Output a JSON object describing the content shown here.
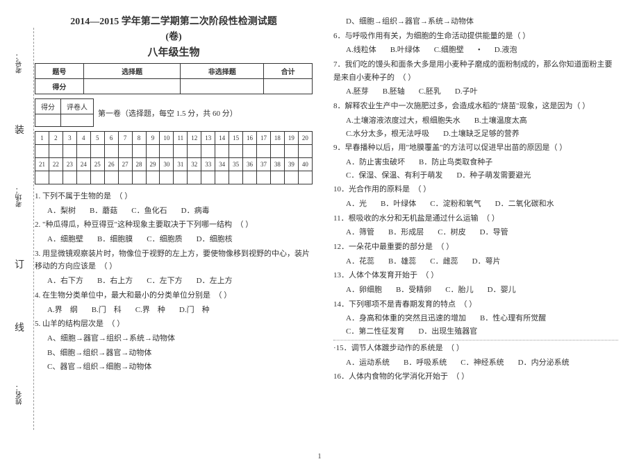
{
  "side": {
    "kaohao": "考号：",
    "kaochang": "考场：",
    "xingming": "姓名：",
    "zhuang": "装",
    "ding": "订",
    "xian": "线"
  },
  "header": {
    "title": "2014—2015 学年第二学期第二次阶段性检测试题",
    "subtitle": "(卷)",
    "subject": "八年级生物",
    "cols": [
      "题号",
      "选择题",
      "非选择题",
      "合计"
    ],
    "row2": "得分",
    "score_label": "得分",
    "reviewer_label": "评卷人",
    "section1": "第一卷（选择题，每空 1.5 分，共 60 分）"
  },
  "grid": {
    "row1": [
      "1",
      "2",
      "3",
      "4",
      "5",
      "6",
      "7",
      "8",
      "9",
      "10",
      "11",
      "12",
      "13",
      "14",
      "15",
      "16",
      "17",
      "18",
      "19",
      "20"
    ],
    "row3": [
      "21",
      "22",
      "23",
      "24",
      "25",
      "26",
      "27",
      "28",
      "29",
      "30",
      "31",
      "32",
      "33",
      "34",
      "35",
      "36",
      "37",
      "38",
      "39",
      "40"
    ]
  },
  "left_questions": [
    {
      "num": "1",
      "stem": "下列不属于生物的是",
      "blank": "（    ）",
      "opts": [
        "A．梨树",
        "B．蘑菇",
        "C．鱼化石",
        "D．病毒"
      ]
    },
    {
      "num": "2",
      "stem": "\"种瓜得瓜，种豆得豆\"这种现象主要取决于下列哪一结构",
      "blank": "（    ）",
      "opts": [
        "A．细胞壁",
        "B．细胞膜",
        "C．细胞质",
        "D．细胞核"
      ]
    },
    {
      "num": "3",
      "stem": "用显微镜观察装片时，物像位于视野的左上方，要使物像移到视野的中心，装片移动的方向应该是",
      "blank": "（    ）",
      "opts": [
        "A．右下方",
        "B．右上方",
        "C．左下方",
        "D．左上方"
      ]
    },
    {
      "num": "4",
      "stem": "在生物分类单位中，最大和最小的分类单位分别是",
      "blank": "（    ）",
      "opts": [
        "A.界　纲",
        "B.门　科",
        "C.界　种",
        "D.门　种"
      ]
    },
    {
      "num": "5",
      "stem": "山羊的结构层次是",
      "blank": "（    ）",
      "opts_col": [
        "A、细胞→器官→组织→系统→动物体",
        "B、细胞→组织→器官→动物体",
        "C、器官→组织→细胞→动物体"
      ]
    }
  ],
  "right_lines": [
    {
      "type": "opt_cont",
      "text": "D、细胞→组织→器官→系统→动物体"
    },
    {
      "type": "q",
      "num": "6",
      "stem": "与呼吸作用有关，为细胞的生命活动提供能量的是（    ）",
      "opts": [
        "A.线粒体",
        "B.叶绿体",
        "C.细胞壁",
        "D.液泡"
      ],
      "dot_after_c": true
    },
    {
      "type": "q",
      "num": "7",
      "stem": "我们吃的馒头和面条大多是用小麦种子磨成的面粉制成的，那么你知道面粉主要是来自小麦种子的",
      "blank": "（    ）",
      "opts": [
        "A.胚芽",
        "B.胚轴",
        "C.胚乳",
        "D.子叶"
      ]
    },
    {
      "type": "q",
      "num": "8",
      "stem": "解释农业生产中一次施肥过多，会造成水稻的\"烧苗\"现象，这是因为（  ）",
      "opts": [
        "A.土壤溶液浓度过大，根细胞失水",
        "B.土壤温度太高",
        "C.水分太多，根无法呼吸",
        "D.土壤缺乏足够的营养"
      ]
    },
    {
      "type": "q",
      "num": "9",
      "stem": "早春播种以后，用\"地膜覆盖\"的方法可以促进早出苗的原因是（  ）",
      "opts": [
        "A．防止害虫破坏",
        "B．防止鸟类取食种子",
        "C．保湿、保温、有利于萌发",
        "D．种子萌发需要避光"
      ]
    },
    {
      "type": "q",
      "num": "10",
      "stem": "光合作用的原料是",
      "blank": "（  ）",
      "opts": [
        "A．光",
        "B．叶绿体",
        "C．淀粉和氧气",
        "D．二氧化碳和水"
      ]
    },
    {
      "type": "q",
      "num": "11",
      "stem": "根吸收的水分和无机盐是通过什么运输",
      "blank": "（  ）",
      "opts": [
        "A．筛管",
        "B．形成层",
        "C．树皮",
        "D．导管"
      ]
    },
    {
      "type": "q",
      "num": "12",
      "stem": "一朵花中最重要的部分是",
      "blank": "（  ）",
      "opts": [
        "A．花蕊",
        "B．雄蕊",
        "C．雌蕊",
        "D．萼片"
      ]
    },
    {
      "type": "q",
      "num": "13",
      "stem": "人体个体发育开始于",
      "blank": "（  ）",
      "opts": [
        "A．卵细胞",
        "B．受精卵",
        "C．胎儿",
        "D．婴儿"
      ]
    },
    {
      "type": "q",
      "num": "14",
      "stem": "下列哪项不是青春期发育的特点",
      "blank": "（  ）",
      "opts": [
        "A．身高和体重的突然且迅速的增加",
        "B．性心理有所觉醒",
        "C．第二性征发育",
        "D．出现生殖器官"
      ]
    },
    {
      "type": "q",
      "num": "15",
      "stem": "调节人体踱步动作的系统是",
      "blank": "（  ）",
      "opts": [
        "A．运动系统",
        "B．呼吸系统",
        "C．神经系统",
        "D．内分泌系统"
      ],
      "dot_before": true
    },
    {
      "type": "q",
      "num": "16",
      "stem": "人体内食物的化学消化开始于",
      "blank": "（  ）"
    }
  ],
  "page_num": "1"
}
